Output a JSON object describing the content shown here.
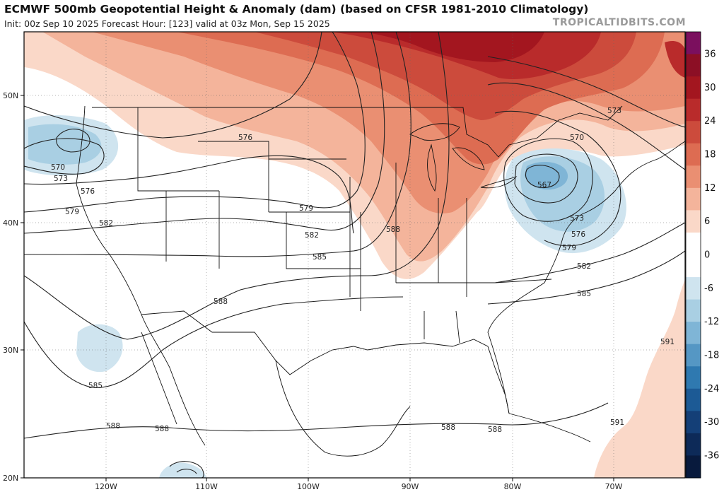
{
  "header": {
    "title": "ECMWF 500mb Geopotential Height & Anomaly (dam) (based on CFSR 1981-2010 Climatology)",
    "subtitle": "Init: 00z Sep 10 2025   Forecast Hour: [123]   valid at 03z Mon, Sep 15 2025",
    "credit": "TROPICALTIDBITS.COM"
  },
  "axes": {
    "lat_labels": [
      "50N",
      "40N",
      "30N",
      "20N"
    ],
    "lon_labels": [
      "120W",
      "110W",
      "100W",
      "90W",
      "80W",
      "70W"
    ]
  },
  "colorbar": {
    "unit": "dam",
    "labels": [
      "36",
      "30",
      "24",
      "18",
      "12",
      "6",
      "0",
      "-6",
      "-12",
      "-18",
      "-24",
      "-30",
      "-36"
    ],
    "colors": [
      "#7b0f5e",
      "#8c0f25",
      "#a3161f",
      "#b92b2b",
      "#cc4b3c",
      "#dd6c52",
      "#ea8f72",
      "#f4b49b",
      "#fad8c8",
      "#ffffff",
      "#ffffff",
      "#cfe4ef",
      "#a9cfe3",
      "#7fb5d6",
      "#5597c4",
      "#2f79b0",
      "#1c5a95",
      "#143f77",
      "#0d2a58",
      "#081a3d"
    ]
  },
  "contour_labels": [
    {
      "text": "576",
      "id": "c576a"
    },
    {
      "text": "570",
      "id": "c570a"
    },
    {
      "text": "573",
      "id": "c573a"
    },
    {
      "text": "576",
      "id": "c576b"
    },
    {
      "text": "579",
      "id": "c579a"
    },
    {
      "text": "582",
      "id": "c582a"
    },
    {
      "text": "579",
      "id": "c579b"
    },
    {
      "text": "582",
      "id": "c582b"
    },
    {
      "text": "585",
      "id": "c585a"
    },
    {
      "text": "588",
      "id": "c588a"
    },
    {
      "text": "588",
      "id": "c588b"
    },
    {
      "text": "573",
      "id": "c573b"
    },
    {
      "text": "570",
      "id": "c570b"
    },
    {
      "text": "567",
      "id": "c567"
    },
    {
      "text": "573",
      "id": "c573c"
    },
    {
      "text": "576",
      "id": "c576c"
    },
    {
      "text": "579",
      "id": "c579c"
    },
    {
      "text": "582",
      "id": "c582c"
    },
    {
      "text": "585",
      "id": "c585b"
    },
    {
      "text": "585",
      "id": "c585c"
    },
    {
      "text": "588",
      "id": "c588c"
    },
    {
      "text": "588",
      "id": "c588d"
    },
    {
      "text": "588",
      "id": "c588e"
    },
    {
      "text": "588",
      "id": "c588f"
    },
    {
      "text": "591",
      "id": "c591a"
    },
    {
      "text": "591",
      "id": "c591b"
    }
  ]
}
